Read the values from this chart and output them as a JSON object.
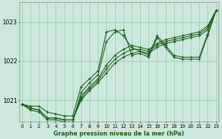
{
  "title": "Graphe pression niveau de la mer (hPa)",
  "bg_color": "#cce8dc",
  "grid_color": "#99ccb3",
  "line_color": "#1a5c1a",
  "x_labels": [
    "0",
    "1",
    "2",
    "3",
    "4",
    "5",
    "6",
    "7",
    "8",
    "9",
    "10",
    "11",
    "12",
    "13",
    "14",
    "15",
    "16",
    "17",
    "18",
    "19",
    "20",
    "21",
    "22",
    "23"
  ],
  "yticks": [
    1021,
    1022,
    1023
  ],
  "ylim": [
    1020.45,
    1023.5
  ],
  "xlim": [
    -0.3,
    23.3
  ],
  "series": [
    [
      1020.9,
      1020.85,
      1020.85,
      1020.7,
      1020.65,
      1020.6,
      1020.6,
      1021.35,
      1021.55,
      1021.75,
      1022.75,
      1022.8,
      1022.65,
      1022.35,
      1022.25,
      1022.15,
      1022.65,
      1022.4,
      1022.15,
      1022.1,
      1022.1,
      1022.1,
      1022.7,
      1023.3
    ],
    [
      1020.9,
      1020.8,
      1020.75,
      1020.55,
      1020.55,
      1020.5,
      1020.5,
      1021.0,
      1021.25,
      1021.45,
      1021.7,
      1021.95,
      1022.1,
      1022.2,
      1022.25,
      1022.2,
      1022.35,
      1022.45,
      1022.5,
      1022.55,
      1022.6,
      1022.65,
      1022.8,
      1023.3
    ],
    [
      1020.9,
      1020.8,
      1020.75,
      1020.55,
      1020.55,
      1020.5,
      1020.5,
      1021.05,
      1021.3,
      1021.5,
      1021.8,
      1022.05,
      1022.2,
      1022.3,
      1022.3,
      1022.25,
      1022.4,
      1022.5,
      1022.55,
      1022.6,
      1022.65,
      1022.7,
      1022.85,
      1023.3
    ],
    [
      1020.9,
      1020.8,
      1020.75,
      1020.55,
      1020.55,
      1020.5,
      1020.5,
      1021.1,
      1021.35,
      1021.55,
      1021.9,
      1022.15,
      1022.3,
      1022.4,
      1022.35,
      1022.3,
      1022.45,
      1022.55,
      1022.6,
      1022.65,
      1022.7,
      1022.75,
      1022.9,
      1023.3
    ],
    [
      1020.9,
      1020.75,
      1020.7,
      1020.5,
      1020.5,
      1020.45,
      1020.45,
      1021.2,
      1021.45,
      1021.65,
      1022.5,
      1022.75,
      1022.8,
      1022.15,
      1022.2,
      1022.1,
      1022.6,
      1022.35,
      1022.1,
      1022.05,
      1022.05,
      1022.05,
      1022.65,
      1023.3
    ]
  ]
}
